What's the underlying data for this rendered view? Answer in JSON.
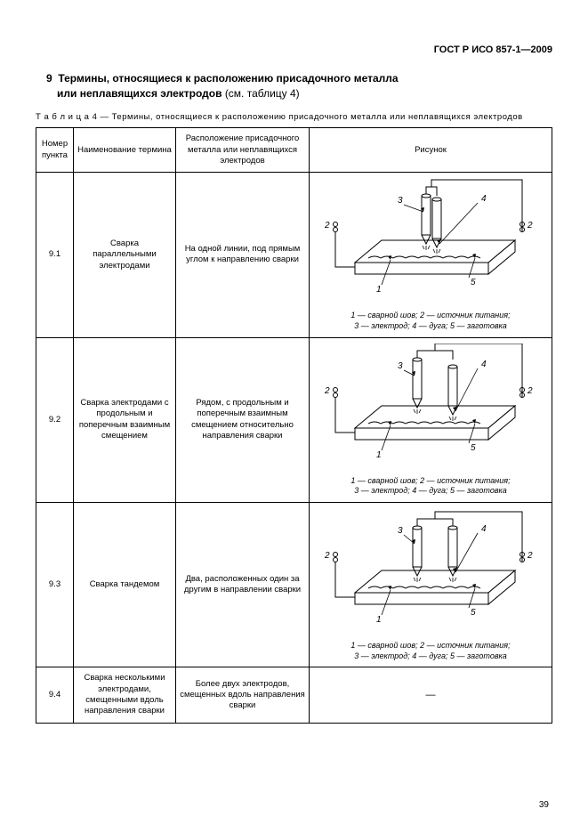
{
  "doc_id": "ГОСТ Р ИСО 857-1—2009",
  "section_num": "9",
  "section_title": "Термины, относящиеся к расположению присадочного металла",
  "section_title2": "или неплавящихся электродов",
  "section_ref": "(см. таблицу 4)",
  "table_caption": "Т а б л и ц а  4 — Термины, относящиеся к расположению присадочного металла или неплавящихся электродов",
  "headers": {
    "col1": "Номер пункта",
    "col2": "Наименование термина",
    "col3": "Расположение присадочного металла или неплавящихся электродов",
    "col4": "Рисунок"
  },
  "rows": [
    {
      "num": "9.1",
      "term": "Сварка параллельными электродами",
      "desc": "На одной линии, под прямым углом к направлению сварки",
      "has_fig": true,
      "fig_style": "parallel",
      "caption_l1": "1 — сварной шов; 2 — источник питания;",
      "caption_l2": "3 — электрод; 4 — дуга; 5 — заготовка"
    },
    {
      "num": "9.2",
      "term": "Сварка электродами с продольным и поперечным взаимным смещением",
      "desc": "Рядом, с продольным и поперечным взаимным смещением относительно направления сварки",
      "has_fig": true,
      "fig_style": "offset",
      "caption_l1": "1 — сварной шов; 2 — источник питания;",
      "caption_l2": "3 — электрод; 4 — дуга; 5 — заготовка"
    },
    {
      "num": "9.3",
      "term": "Сварка тандемом",
      "desc": "Два, расположенных один за другим в направлении сварки",
      "has_fig": true,
      "fig_style": "tandem",
      "caption_l1": "1 — сварной шов; 2 — источник питания;",
      "caption_l2": "3 — электрод; 4 — дуга; 5 — заготовка"
    },
    {
      "num": "9.4",
      "term": "Сварка несколькими электродами, смещенными вдоль направления сварки",
      "desc": "Более двух электродов, смещенных вдоль направления сварки",
      "has_fig": false
    }
  ],
  "page_number": "39",
  "diagram": {
    "stroke": "#000000",
    "stroke_width": 1,
    "fill": "#ffffff",
    "label_font_size": 10,
    "callout_font_style": "italic"
  }
}
